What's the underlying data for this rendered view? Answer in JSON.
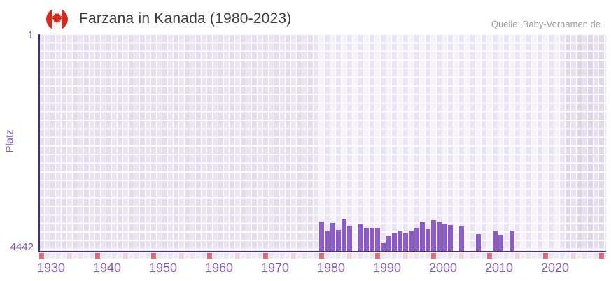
{
  "header": {
    "title": "Farzana in Kanada (1980-2023)",
    "source": "Quelle: Baby-Vornamen.de"
  },
  "chart_data": {
    "type": "bar",
    "title": "Farzana in Kanada (1980-2023)",
    "xlabel": "",
    "ylabel": "Platz",
    "y_axis": {
      "label": "Platz",
      "top_label": "1",
      "bottom_label": "4442",
      "min": 1,
      "max": 4442,
      "inverted": true
    },
    "x_axis": {
      "tick_labels": [
        "1930",
        "1940",
        "1950",
        "1960",
        "1970",
        "1980",
        "1990",
        "2000",
        "2010",
        "2020"
      ],
      "visible_range": [
        1930,
        2031
      ],
      "highlight_range": [
        1980,
        2023
      ]
    },
    "years": [
      1980,
      1981,
      1982,
      1983,
      1984,
      1985,
      1986,
      1987,
      1988,
      1989,
      1990,
      1991,
      1992,
      1993,
      1994,
      1995,
      1996,
      1997,
      1998,
      1999,
      2000,
      2001,
      2002,
      2003,
      2004,
      2005,
      2006,
      2007,
      2008,
      2009,
      2010,
      2011,
      2012,
      2013,
      2014,
      2015,
      2016,
      2017,
      2018,
      2019,
      2020,
      2021,
      2022,
      2023
    ],
    "values": [
      3844,
      4018,
      3873,
      4008,
      3787,
      3921,
      null,
      3896,
      3964,
      3974,
      3960,
      4272,
      4119,
      4080,
      4032,
      4061,
      4022,
      3974,
      3848,
      3992,
      3815,
      3848,
      3887,
      3910,
      null,
      3945,
      null,
      null,
      4090,
      null,
      null,
      4032,
      4104,
      null,
      4046,
      null,
      null,
      null,
      null,
      null,
      null,
      null,
      null,
      null
    ]
  },
  "colors": {
    "bar": "#8c5bc5",
    "axis": "#4b2b7f",
    "tick_text": "#7e54b2",
    "title_text": "#3d3d3d",
    "source_text": "#9a9a9a",
    "bg_col_a": "#e3ddee",
    "bg_col_b": "#eae5f2",
    "hl_col_a": "#f6f2fb",
    "hl_col_b": "#eae4f4",
    "right_col_a": "#ded7ea",
    "right_col_b": "#e6e0f0",
    "strip_base_a": "#f1ecf8",
    "strip_base_b": "#ebe5f3",
    "strip_decade": "#e26a75",
    "strip_half_decade": "#f5d2dd",
    "flag_red": "#d52b1e"
  }
}
